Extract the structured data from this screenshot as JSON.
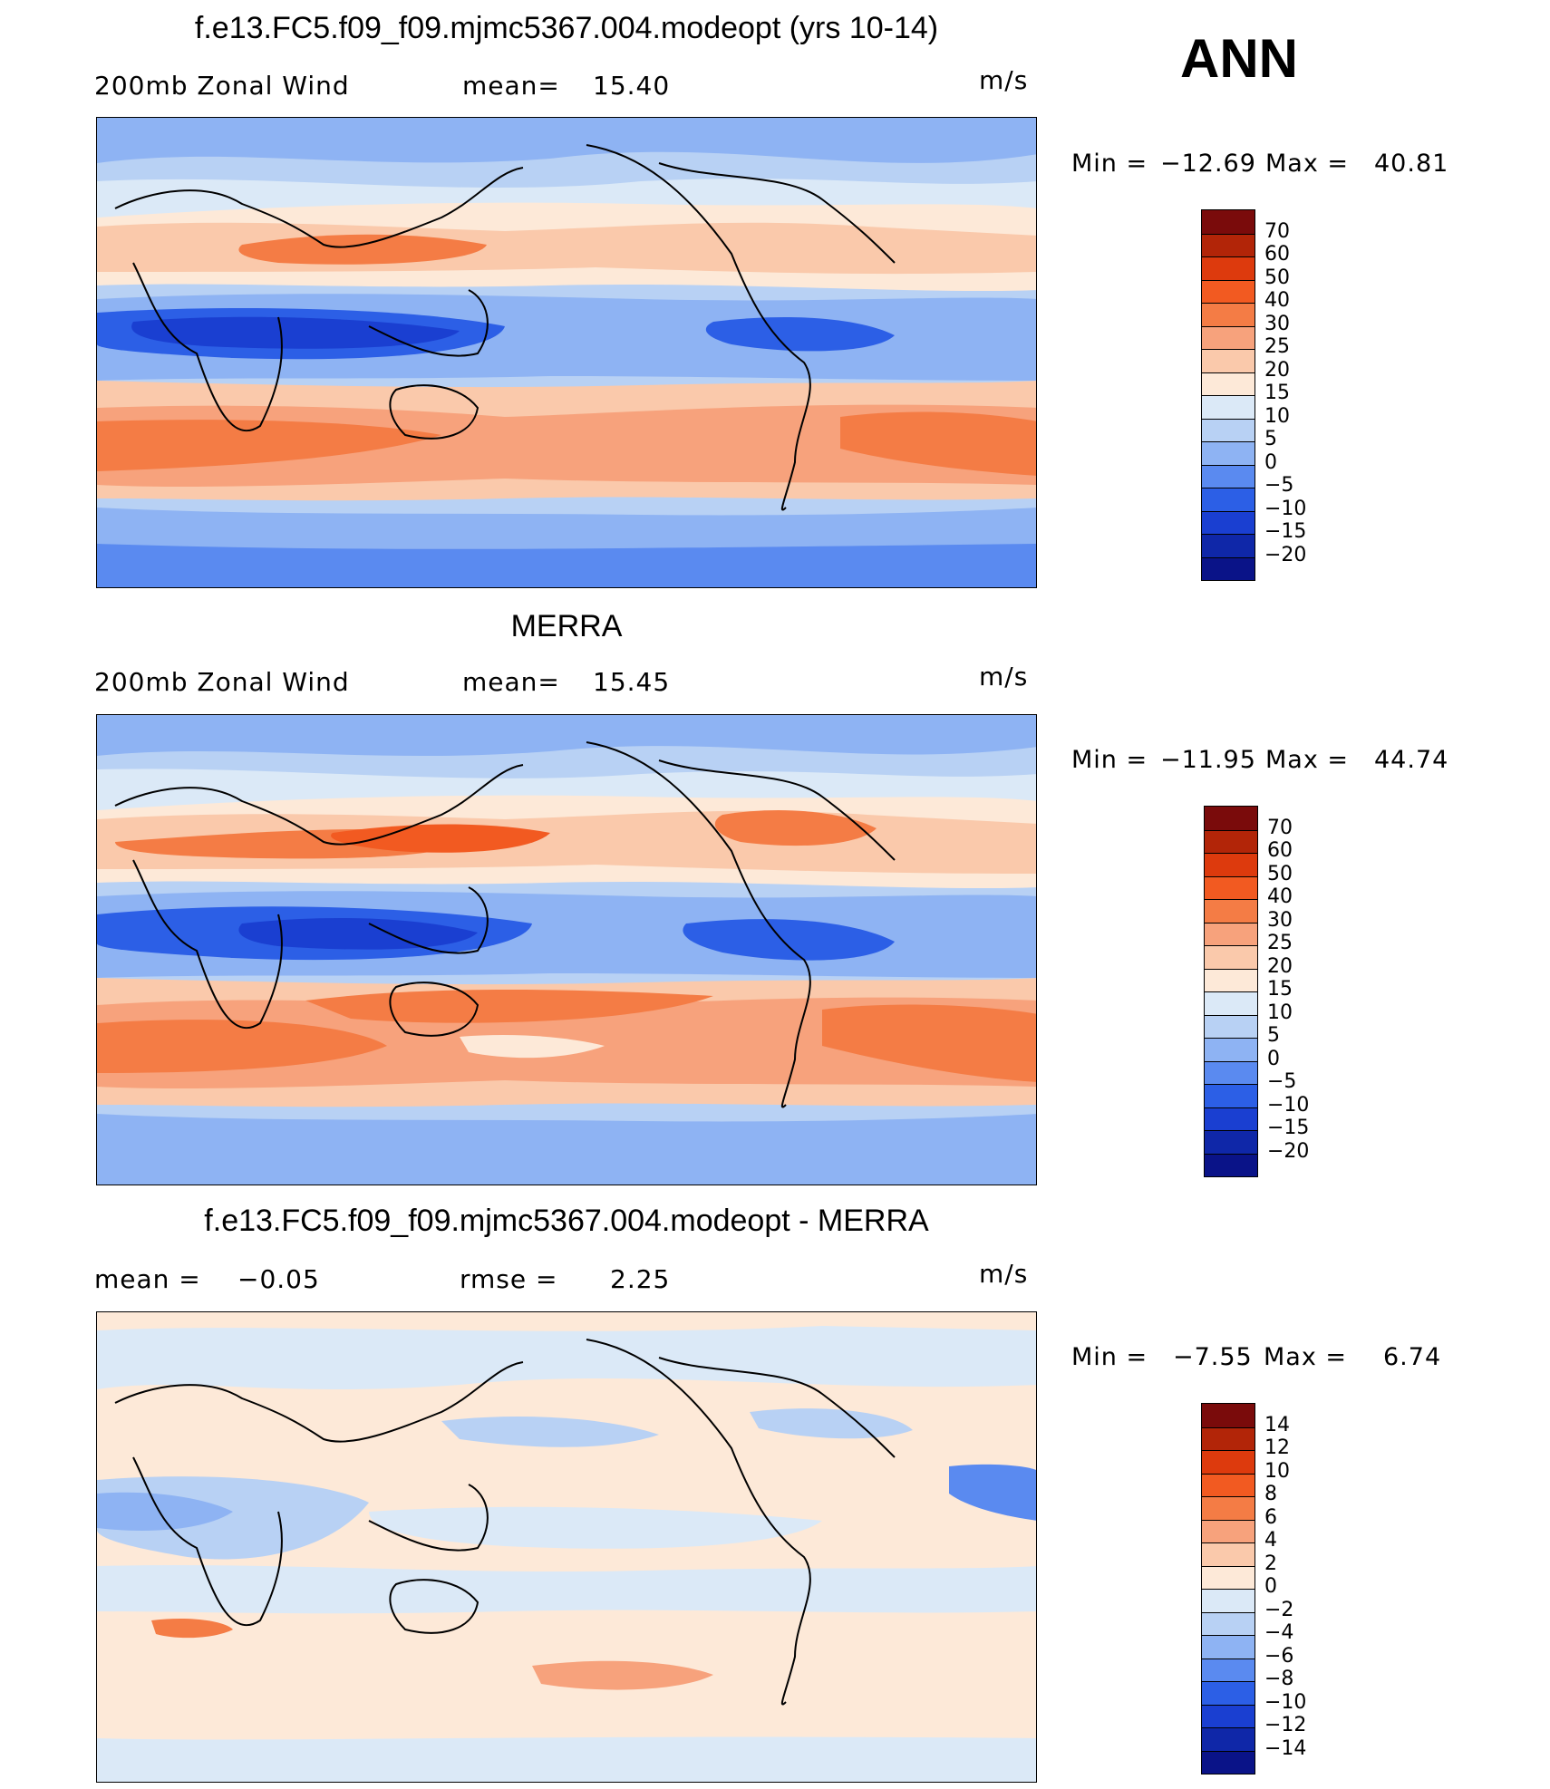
{
  "season": "ANN",
  "panels": [
    {
      "title": "f.e13.FC5.f09_f09.mjmc5367.004.modeopt (yrs 10-14)",
      "left_label": "200mb Zonal Wind",
      "stat_label": "mean=",
      "stat_value": "15.40",
      "units": "m/s",
      "min_label": "Min =",
      "min_value": "−12.69",
      "max_label": "Max =",
      "max_value": "40.81",
      "colorbar": {
        "ticks": [
          "70",
          "60",
          "50",
          "40",
          "30",
          "25",
          "20",
          "15",
          "10",
          "5",
          "0",
          "−5",
          "−10",
          "−15",
          "−20"
        ],
        "colors": [
          "#7a0b0b",
          "#b22508",
          "#dd3a0d",
          "#f25a21",
          "#f47c45",
          "#f7a27c",
          "#fac9ab",
          "#fde9d8",
          "#dbe9f7",
          "#b8d1f4",
          "#8eb3f3",
          "#5a8af0",
          "#2c5fe6",
          "#1a3fd1",
          "#0f27a8",
          "#0a1388"
        ],
        "levels": [
          70,
          60,
          50,
          40,
          30,
          25,
          20,
          15,
          10,
          5,
          0,
          -5,
          -10,
          -15,
          -20
        ]
      }
    },
    {
      "title": "MERRA",
      "left_label": "200mb Zonal Wind",
      "stat_label": "mean=",
      "stat_value": "15.45",
      "units": "m/s",
      "min_label": "Min =",
      "min_value": "−11.95",
      "max_label": "Max =",
      "max_value": "44.74",
      "colorbar": {
        "ticks": [
          "70",
          "60",
          "50",
          "40",
          "30",
          "25",
          "20",
          "15",
          "10",
          "5",
          "0",
          "−5",
          "−10",
          "−15",
          "−20"
        ],
        "colors": [
          "#7a0b0b",
          "#b22508",
          "#dd3a0d",
          "#f25a21",
          "#f47c45",
          "#f7a27c",
          "#fac9ab",
          "#fde9d8",
          "#dbe9f7",
          "#b8d1f4",
          "#8eb3f3",
          "#5a8af0",
          "#2c5fe6",
          "#1a3fd1",
          "#0f27a8",
          "#0a1388"
        ],
        "levels": [
          70,
          60,
          50,
          40,
          30,
          25,
          20,
          15,
          10,
          5,
          0,
          -5,
          -10,
          -15,
          -20
        ]
      }
    },
    {
      "title": "f.e13.FC5.f09_f09.mjmc5367.004.modeopt - MERRA",
      "left_label": "mean =",
      "left_value": "−0.05",
      "stat_label": "rmse =",
      "stat_value": "2.25",
      "units": "m/s",
      "min_label": "Min =",
      "min_value": "−7.55",
      "max_label": "Max =",
      "max_value": "6.74",
      "colorbar": {
        "ticks": [
          "14",
          "12",
          "10",
          "8",
          "6",
          "4",
          "2",
          "0",
          "−2",
          "−4",
          "−6",
          "−8",
          "−10",
          "−12",
          "−14"
        ],
        "colors": [
          "#7a0b0b",
          "#b22508",
          "#dd3a0d",
          "#f25a21",
          "#f47c45",
          "#f7a27c",
          "#fac9ab",
          "#fde9d8",
          "#dbe9f7",
          "#b8d1f4",
          "#8eb3f3",
          "#5a8af0",
          "#2c5fe6",
          "#1a3fd1",
          "#0f27a8",
          "#0a1388"
        ],
        "levels": [
          14,
          12,
          10,
          8,
          6,
          4,
          2,
          0,
          -2,
          -4,
          -6,
          -8,
          -10,
          -12,
          -14
        ]
      }
    }
  ]
}
